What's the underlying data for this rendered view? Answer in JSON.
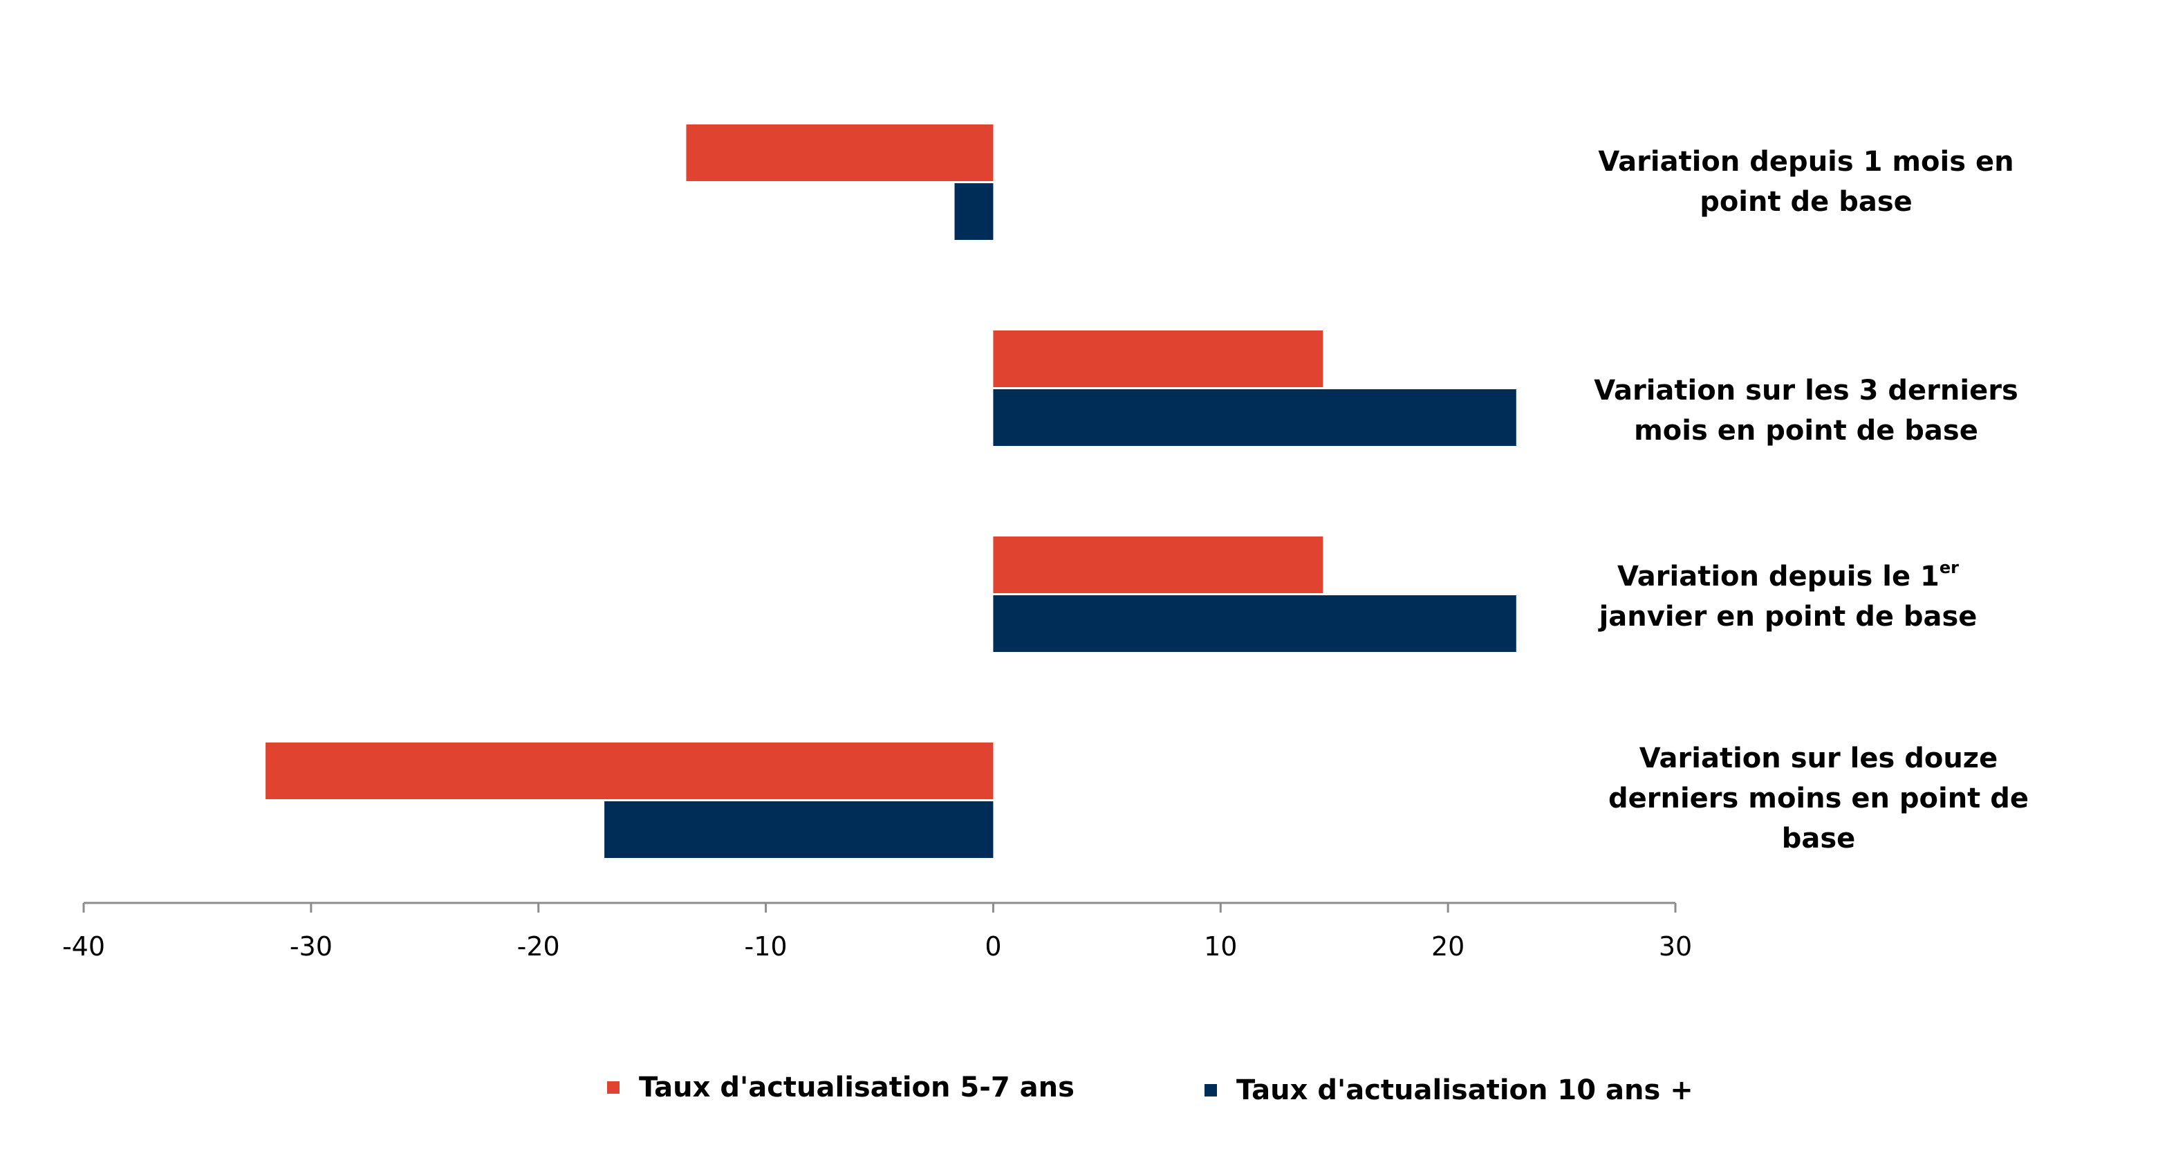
{
  "chart_data": {
    "type": "bar",
    "orientation": "horizontal",
    "categories": [
      "Variation depuis 1 mois en point de base",
      "Variation sur les 3 derniers mois en point de base",
      "Variation depuis le 1er janvier en point de base",
      "Variation sur les douze derniers moins en point de base"
    ],
    "series": [
      {
        "name": "Taux d'actualisation 5-7 ans",
        "color": "#E0432F",
        "values": [
          -13.5,
          14.5,
          14.5,
          -32
        ]
      },
      {
        "name": "Taux d'actualisation 10 ans +",
        "color": "#002D57",
        "values": [
          -1.7,
          23,
          23,
          -17.1
        ]
      }
    ],
    "xlim": [
      -40,
      30
    ],
    "xticks": [
      "-40",
      "-30",
      "-20",
      "-10",
      "0",
      "10",
      "20",
      "30"
    ],
    "category_labels_lines": [
      {
        "line1": "Variation depuis 1 mois en",
        "line2": "point de base",
        "line3": ""
      },
      {
        "line1": "Variation sur les 3 derniers",
        "line2": "mois en point de base",
        "line3": ""
      },
      {
        "line1_main": "Variation depuis le 1",
        "line1_sup": "er",
        "line2": "janvier en point de base",
        "line3": ""
      },
      {
        "line1": "Variation sur les douze",
        "line2": "derniers moins en point de",
        "line3": "base"
      }
    ],
    "legend": {
      "position": "bottom",
      "items": [
        "Taux d'actualisation 5-7 ans",
        "Taux d'actualisation 10 ans +"
      ]
    },
    "grid": false,
    "axis_color": "#8C8C8C"
  }
}
